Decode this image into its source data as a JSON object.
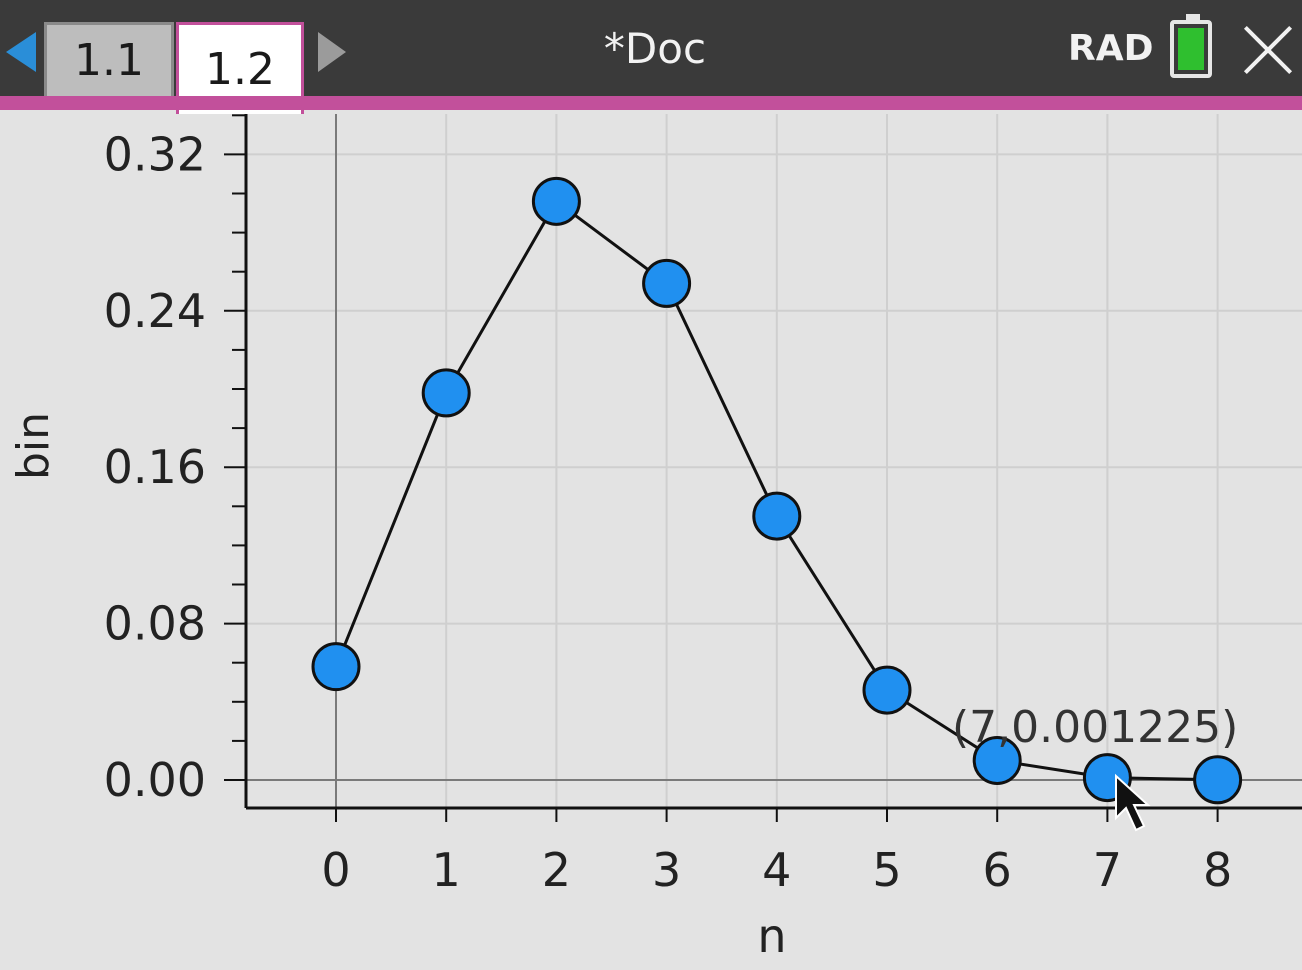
{
  "toolbar": {
    "tabs": [
      {
        "label": "1.1",
        "active": false
      },
      {
        "label": "1.2",
        "active": true
      }
    ],
    "doc_title": "*Doc",
    "angle_mode": "RAD",
    "battery_icon": "battery-full-icon",
    "close_icon": "close-icon",
    "accent_color": "#c2509b"
  },
  "chart_data": {
    "type": "scatter",
    "connected": true,
    "xlabel": "n",
    "ylabel": "bin",
    "x_ticks": [
      "0",
      "1",
      "2",
      "3",
      "4",
      "5",
      "6",
      "7",
      "8"
    ],
    "y_ticks": [
      "0.00",
      "0.08",
      "0.16",
      "0.24",
      "0.32"
    ],
    "xlim": [
      -0.8,
      8.8
    ],
    "ylim": [
      -0.014,
      0.34
    ],
    "grid": true,
    "series": [
      {
        "x": [
          0,
          1,
          2,
          3,
          4,
          5,
          6,
          7,
          8
        ],
        "y": [
          0.058,
          0.198,
          0.296,
          0.254,
          0.135,
          0.046,
          0.01,
          0.001225,
          0.0001
        ],
        "marker_color": "#2090f0"
      }
    ],
    "annotation": {
      "text": "(7,0.001225)",
      "x": 7,
      "y": 0.001225
    }
  }
}
